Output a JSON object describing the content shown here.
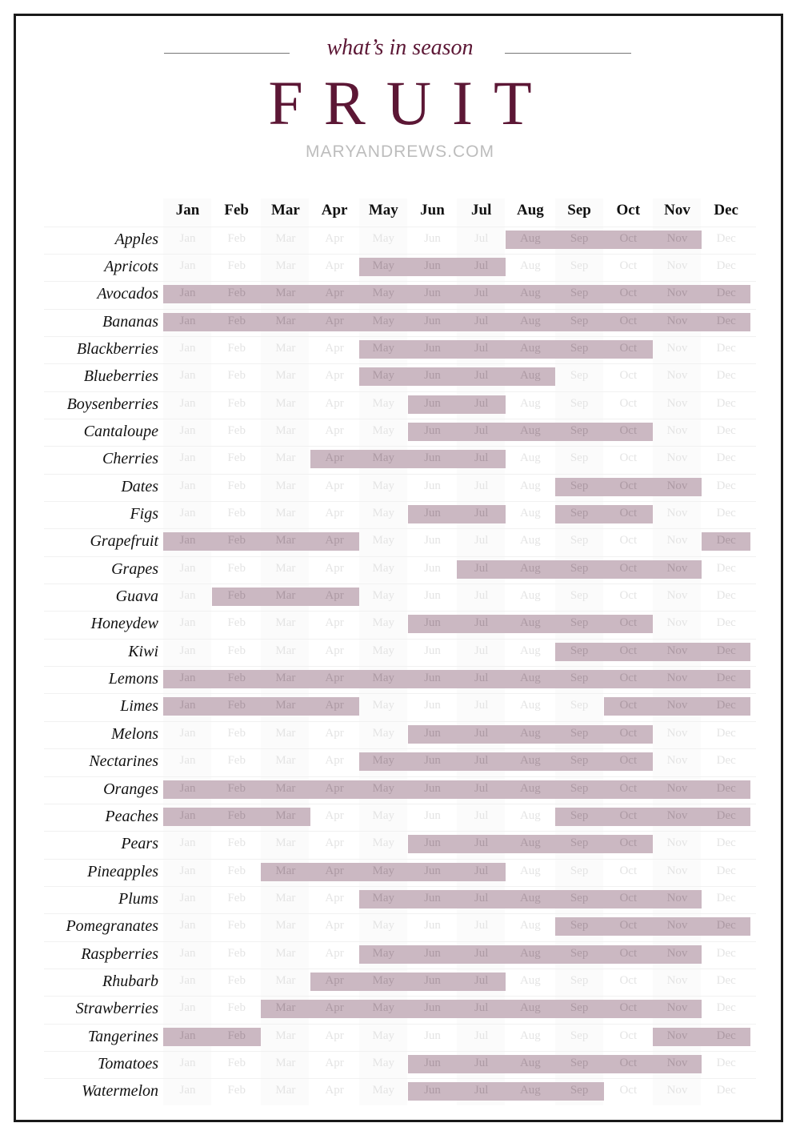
{
  "header": {
    "subtitle": "what’s in season",
    "title": "FRUIT",
    "site": "MARYANDREWS.COM"
  },
  "colors": {
    "accent": "#5c1735",
    "bar": "#cbb8c2",
    "muted": "#e4e4e4"
  },
  "months": [
    "Jan",
    "Feb",
    "Mar",
    "Apr",
    "May",
    "Jun",
    "Jul",
    "Aug",
    "Sep",
    "Oct",
    "Nov",
    "Dec"
  ],
  "fruits": [
    {
      "name": "Apples",
      "months": [
        8,
        9,
        10,
        11
      ]
    },
    {
      "name": "Apricots",
      "months": [
        5,
        6,
        7
      ]
    },
    {
      "name": "Avocados",
      "months": [
        1,
        2,
        3,
        4,
        5,
        6,
        7,
        8,
        9,
        10,
        11,
        12
      ]
    },
    {
      "name": "Bananas",
      "months": [
        1,
        2,
        3,
        4,
        5,
        6,
        7,
        8,
        9,
        10,
        11,
        12
      ]
    },
    {
      "name": "Blackberries",
      "months": [
        5,
        6,
        7,
        8,
        9,
        10
      ]
    },
    {
      "name": "Blueberries",
      "months": [
        5,
        6,
        7,
        8
      ]
    },
    {
      "name": "Boysenberries",
      "months": [
        6,
        7
      ]
    },
    {
      "name": "Cantaloupe",
      "months": [
        6,
        7,
        8,
        9,
        10
      ]
    },
    {
      "name": "Cherries",
      "months": [
        4,
        5,
        6,
        7
      ]
    },
    {
      "name": "Dates",
      "months": [
        9,
        10,
        11
      ]
    },
    {
      "name": "Figs",
      "months": [
        6,
        7,
        9,
        10
      ]
    },
    {
      "name": "Grapefruit",
      "months": [
        1,
        2,
        3,
        4,
        12
      ]
    },
    {
      "name": "Grapes",
      "months": [
        7,
        8,
        9,
        10,
        11
      ]
    },
    {
      "name": "Guava",
      "months": [
        2,
        3,
        4
      ]
    },
    {
      "name": "Honeydew",
      "months": [
        6,
        7,
        8,
        9,
        10
      ]
    },
    {
      "name": "Kiwi",
      "months": [
        9,
        10,
        11,
        12
      ]
    },
    {
      "name": "Lemons",
      "months": [
        1,
        2,
        3,
        4,
        5,
        6,
        7,
        8,
        9,
        10,
        11,
        12
      ]
    },
    {
      "name": "Limes",
      "months": [
        1,
        2,
        3,
        4,
        10,
        11,
        12
      ]
    },
    {
      "name": "Melons",
      "months": [
        6,
        7,
        8,
        9,
        10
      ]
    },
    {
      "name": "Nectarines",
      "months": [
        5,
        6,
        7,
        8,
        9,
        10
      ]
    },
    {
      "name": "Oranges",
      "months": [
        1,
        2,
        3,
        4,
        5,
        6,
        7,
        8,
        9,
        10,
        11,
        12
      ]
    },
    {
      "name": "Peaches",
      "months": [
        1,
        2,
        3,
        9,
        10,
        11,
        12
      ]
    },
    {
      "name": "Pears",
      "months": [
        6,
        7,
        8,
        9,
        10
      ]
    },
    {
      "name": "Pineapples",
      "months": [
        3,
        4,
        5,
        6,
        7
      ]
    },
    {
      "name": "Plums",
      "months": [
        5,
        6,
        7,
        8,
        9,
        10,
        11
      ]
    },
    {
      "name": "Pomegranates",
      "months": [
        9,
        10,
        11,
        12
      ]
    },
    {
      "name": "Raspberries",
      "months": [
        5,
        6,
        7,
        8,
        9,
        10,
        11
      ]
    },
    {
      "name": "Rhubarb",
      "months": [
        4,
        5,
        6,
        7
      ]
    },
    {
      "name": "Strawberries",
      "months": [
        3,
        4,
        5,
        6,
        7,
        8,
        9,
        10,
        11
      ]
    },
    {
      "name": "Tangerines",
      "months": [
        1,
        2,
        11,
        12
      ]
    },
    {
      "name": "Tomatoes",
      "months": [
        6,
        7,
        8,
        9,
        10,
        11
      ]
    },
    {
      "name": "Watermelon",
      "months": [
        6,
        7,
        8,
        9
      ]
    }
  ]
}
